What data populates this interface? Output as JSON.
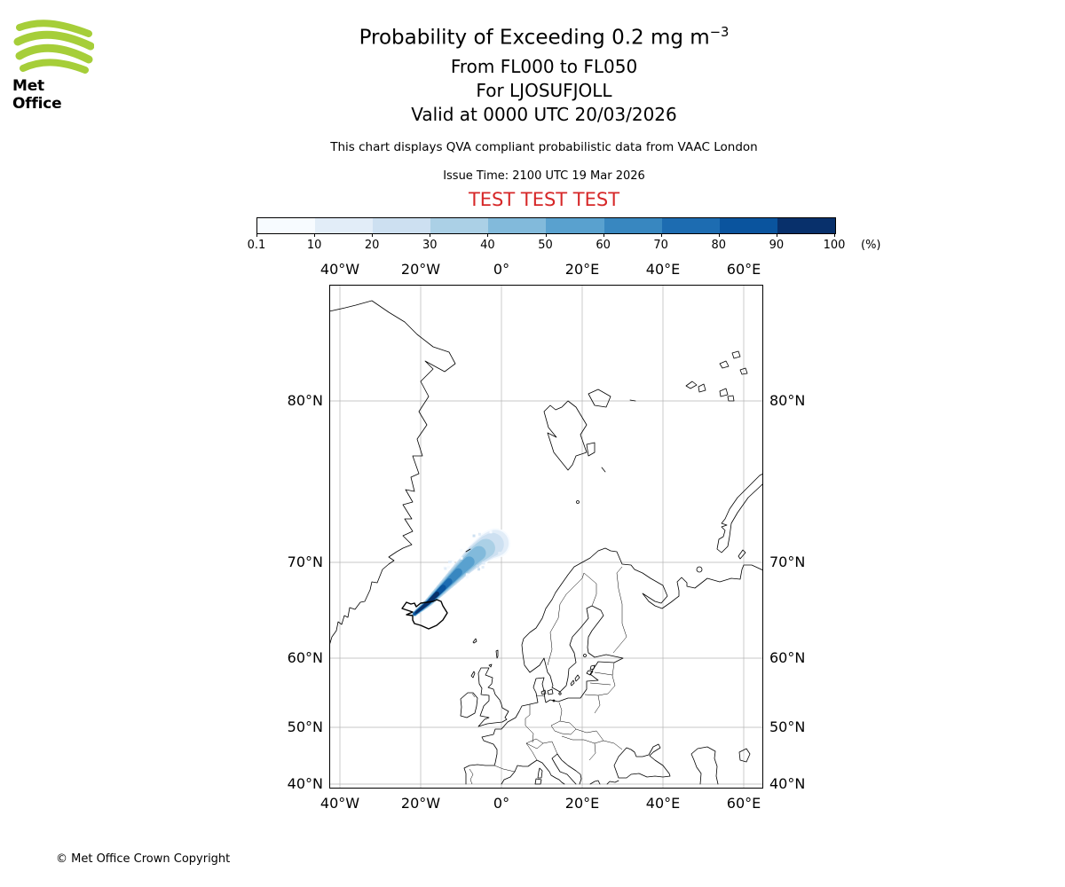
{
  "header": {
    "logo_text": "Met Office",
    "logo_green": "#a6ce39",
    "title_main": "Probability of Exceeding 0.2 mg m",
    "title_exponent": "−3",
    "flight_levels": "From FL000 to FL050",
    "volcano": "For LJOSUFJOLL",
    "valid_time": "Valid at 0000 UTC 20/03/2026",
    "description": "This chart displays QVA compliant probabilistic data from VAAC London",
    "issue_time": "Issue Time: 2100 UTC 19 Mar 2026",
    "test_banner": "TEST TEST TEST",
    "test_color": "#d62728"
  },
  "legend": {
    "tick_labels": [
      "0.1",
      "10",
      "20",
      "30",
      "40",
      "50",
      "60",
      "70",
      "80",
      "90",
      "100"
    ],
    "unit_label": "(%)",
    "colors": [
      "#f7fbff",
      "#e2edf8",
      "#cde0f1",
      "#abd0e6",
      "#82badb",
      "#59a1cf",
      "#3887c0",
      "#1d6cb1",
      "#0a549e",
      "#08306b"
    ]
  },
  "map_axes": {
    "x_labels": [
      "40°W",
      "20°W",
      "0°",
      "20°E",
      "40°E",
      "60°E"
    ],
    "y_labels": [
      "80°N",
      "70°N",
      "60°N",
      "50°N",
      "40°N"
    ]
  },
  "chart_data": {
    "type": "heatmap",
    "title": "Probability of Exceeding 0.2 mg m⁻³",
    "subtitle": "From FL000 to FL050, For LJOSUFJOLL, Valid at 0000 UTC 20/03/2026",
    "projection": "Mercator",
    "map_extent": {
      "lon_min": -42.6,
      "lon_max": 64.8,
      "lat_min": 39.9,
      "lat_max": 83.9
    },
    "x_ticks_deg_lon": [
      -40,
      -20,
      0,
      20,
      40,
      60
    ],
    "y_ticks_deg_lat": [
      80,
      70,
      60,
      50,
      40
    ],
    "colorbar": {
      "levels_percent": [
        0.1,
        10,
        20,
        30,
        40,
        50,
        60,
        70,
        80,
        90,
        100
      ],
      "unit": "%",
      "legend_position": "top-horizontal"
    },
    "plume": {
      "description": "Volcanic ash exceedance-probability plume extending northeast from Iceland toward the Norwegian Sea",
      "centerline_lonlat": [
        [
          -21.5,
          65.0
        ],
        [
          -18.0,
          66.2
        ],
        [
          -14.0,
          67.8
        ],
        [
          -10.0,
          69.3
        ],
        [
          -6.0,
          70.6
        ],
        [
          -3.0,
          71.3
        ],
        [
          -1.5,
          71.5
        ]
      ],
      "max_percent_at_southwest_end": 100,
      "min_percent_at_northeast_tip": 0.1
    }
  },
  "footer": {
    "copyright_text": "© Met Office Crown Copyright"
  }
}
